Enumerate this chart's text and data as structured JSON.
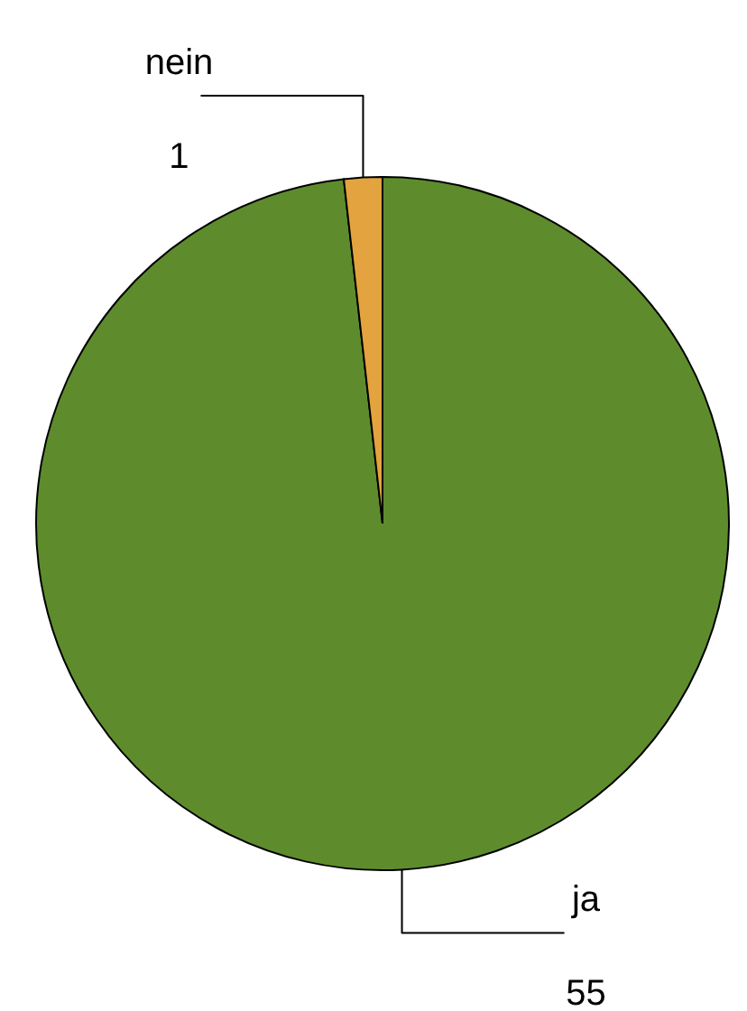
{
  "chart_data": {
    "type": "pie",
    "categories": [
      "ja",
      "nein"
    ],
    "values": [
      55,
      1
    ],
    "colors": [
      "#5e8c2c",
      "#e3a33e"
    ],
    "data_labels": true
  }
}
